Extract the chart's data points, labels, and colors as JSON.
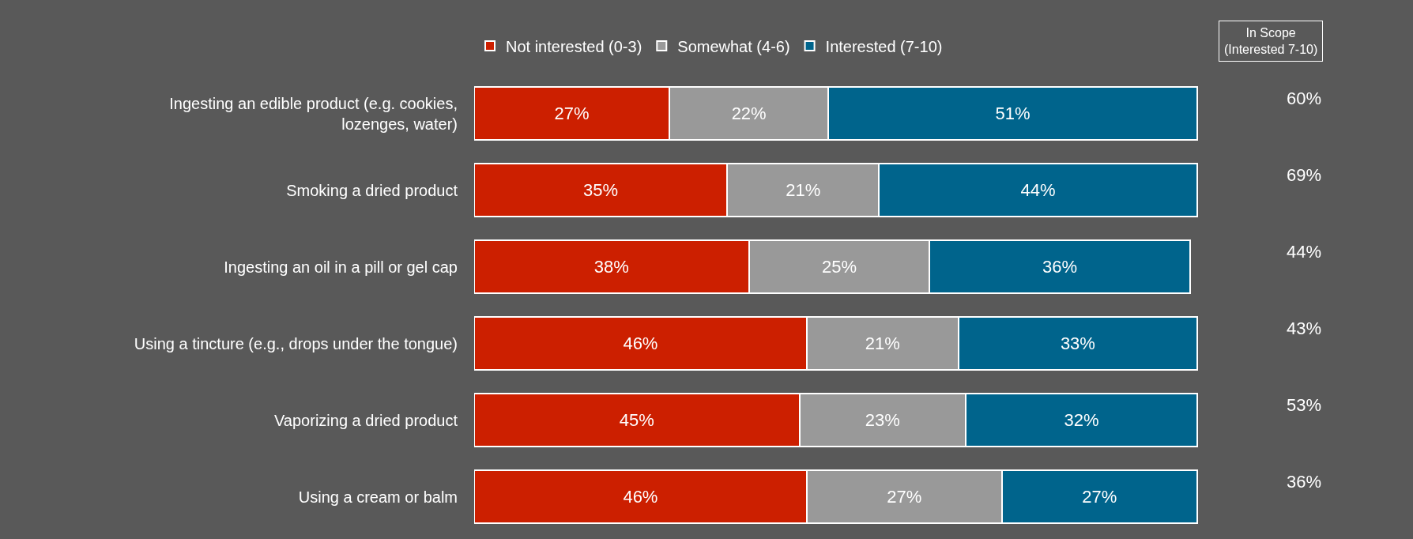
{
  "chart_data": {
    "type": "bar",
    "orientation": "horizontal",
    "stacked": true,
    "tick_labels": "y",
    "grid": false,
    "legend": "top",
    "categories": [
      "Ingesting an edible product (e.g. cookies,\nlozenges, water)",
      "Smoking a dried product",
      "Ingesting an oil in a pill or gel cap",
      "Using a tincture (e.g., drops under the tongue)",
      "Vaporizing a dried product",
      "Using a cream or balm"
    ],
    "series": [
      {
        "name": "Not interested (0-3)",
        "color": "#cc1f00",
        "values": [
          27,
          35,
          38,
          46,
          45,
          46
        ],
        "value_labels": [
          "27%",
          "35%",
          "38%",
          "46%",
          "45%",
          "46%"
        ]
      },
      {
        "name": "Somewhat (4-6)",
        "color": "#999999",
        "values": [
          22,
          21,
          25,
          21,
          23,
          27
        ],
        "value_labels": [
          "22%",
          "21%",
          "25%",
          "21%",
          "23%",
          "27%"
        ]
      },
      {
        "name": "Interested (7-10)",
        "color": "#00648c",
        "values": [
          51,
          44,
          36,
          33,
          32,
          27
        ],
        "value_labels": [
          "51%",
          "44%",
          "36%",
          "33%",
          "32%",
          "27%"
        ]
      }
    ],
    "annotations": [
      "In Scope\n(Interested 7-10)",
      "60%",
      "69%",
      "44%",
      "43%",
      "53%",
      "36%"
    ]
  }
}
